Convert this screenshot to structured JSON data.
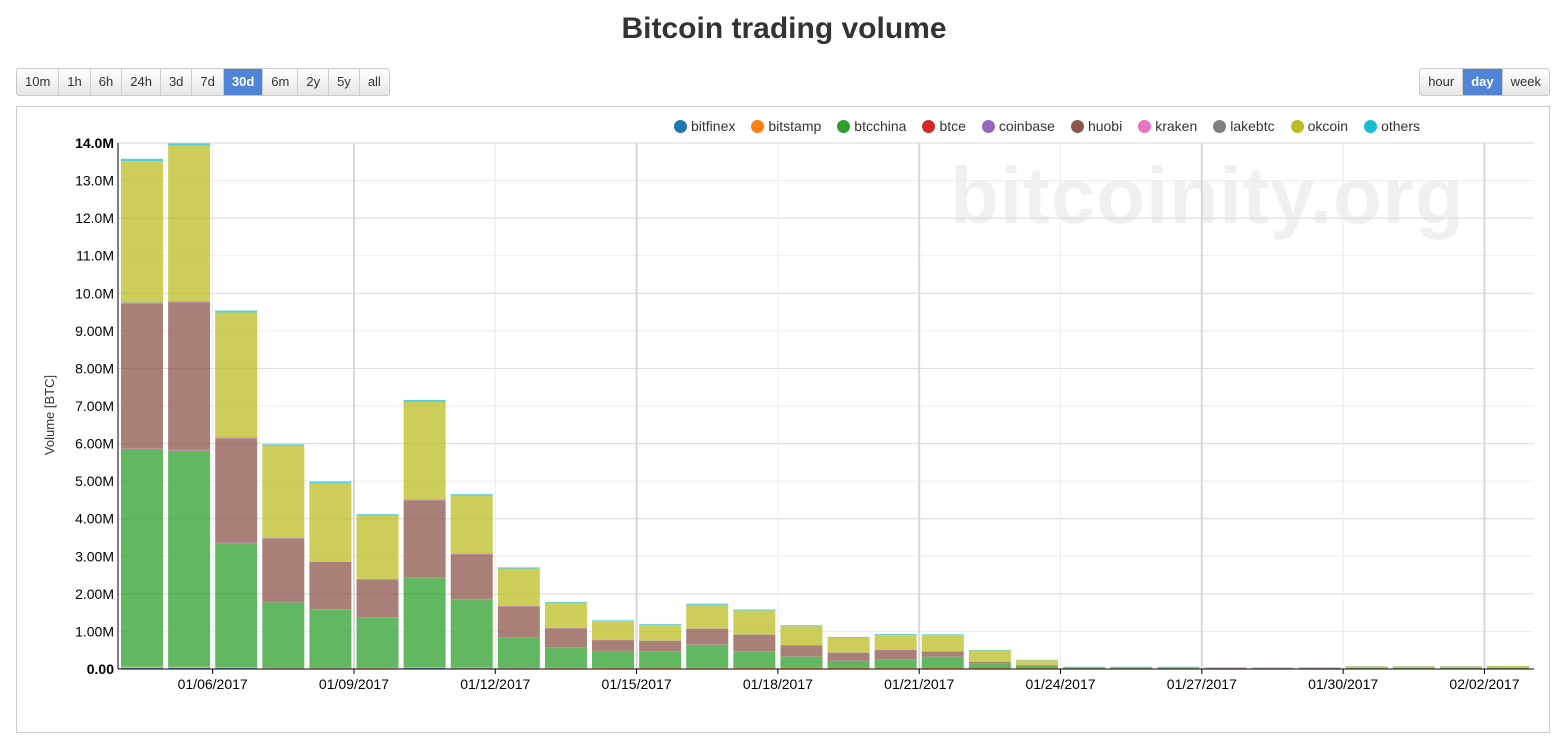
{
  "title": "Bitcoin trading volume",
  "range_buttons": [
    {
      "label": "10m",
      "active": false
    },
    {
      "label": "1h",
      "active": false
    },
    {
      "label": "6h",
      "active": false
    },
    {
      "label": "24h",
      "active": false
    },
    {
      "label": "3d",
      "active": false
    },
    {
      "label": "7d",
      "active": false
    },
    {
      "label": "30d",
      "active": true
    },
    {
      "label": "6m",
      "active": false
    },
    {
      "label": "2y",
      "active": false
    },
    {
      "label": "5y",
      "active": false
    },
    {
      "label": "all",
      "active": false
    }
  ],
  "interval_buttons": [
    {
      "label": "hour",
      "active": false
    },
    {
      "label": "day",
      "active": true
    },
    {
      "label": "week",
      "active": false
    }
  ],
  "watermark": "bitcoinity.org",
  "colors": {
    "accent": "#4f84d6",
    "bitfinex": "#1f77b4",
    "bitstamp": "#ff7f0e",
    "btcchina": "#2ca02c",
    "btce": "#d62728",
    "coinbase": "#9467bd",
    "huobi": "#8c564b",
    "kraken": "#e377c2",
    "lakebtc": "#7f7f7f",
    "okcoin": "#bcbd22",
    "others": "#17becf"
  },
  "chart_data": {
    "type": "bar",
    "stacked": true,
    "ylabel": "Volume [BTC]",
    "ylim": [
      0,
      14000000
    ],
    "y_ticks": [
      0,
      1000000,
      2000000,
      3000000,
      4000000,
      5000000,
      6000000,
      7000000,
      8000000,
      9000000,
      10000000,
      11000000,
      12000000,
      13000000,
      14000000
    ],
    "y_tick_labels": [
      "0.00",
      "1.00M",
      "2.00M",
      "3.00M",
      "4.00M",
      "5.00M",
      "6.00M",
      "7.00M",
      "8.00M",
      "9.00M",
      "10.0M",
      "11.0M",
      "12.0M",
      "13.0M",
      "14.0M"
    ],
    "x_tick_labels": [
      "01/06/2017",
      "01/09/2017",
      "01/12/2017",
      "01/15/2017",
      "01/18/2017",
      "01/21/2017",
      "01/24/2017",
      "01/27/2017",
      "01/30/2017",
      "02/02/2017"
    ],
    "x_tick_dates": [
      "2017-01-06",
      "2017-01-09",
      "2017-01-12",
      "2017-01-15",
      "2017-01-18",
      "2017-01-21",
      "2017-01-24",
      "2017-01-27",
      "2017-01-30",
      "2017-02-02"
    ],
    "categories": [
      "2017-01-04",
      "2017-01-05",
      "2017-01-06",
      "2017-01-07",
      "2017-01-08",
      "2017-01-09",
      "2017-01-10",
      "2017-01-11",
      "2017-01-12",
      "2017-01-13",
      "2017-01-14",
      "2017-01-15",
      "2017-01-16",
      "2017-01-17",
      "2017-01-18",
      "2017-01-19",
      "2017-01-20",
      "2017-01-21",
      "2017-01-22",
      "2017-01-23",
      "2017-01-24",
      "2017-01-25",
      "2017-01-26",
      "2017-01-27",
      "2017-01-28",
      "2017-01-29",
      "2017-01-30",
      "2017-01-31",
      "2017-02-01",
      "2017-02-02"
    ],
    "legend_position": "top-right",
    "series": [
      {
        "name": "bitfinex",
        "values": [
          30000,
          30000,
          25000,
          20000,
          20000,
          18000,
          25000,
          22000,
          20000,
          18000,
          16000,
          15000,
          18000,
          15000,
          15000,
          14000,
          14000,
          14000,
          12000,
          12000,
          8000,
          8000,
          8000,
          6000,
          5000,
          6000,
          8000,
          8000,
          8000,
          9000
        ]
      },
      {
        "name": "bitstamp",
        "values": [
          30000,
          30000,
          25000,
          20000,
          20000,
          18000,
          25000,
          22000,
          20000,
          18000,
          16000,
          15000,
          18000,
          15000,
          15000,
          14000,
          14000,
          14000,
          12000,
          12000,
          8000,
          8000,
          8000,
          6000,
          5000,
          6000,
          8000,
          8000,
          8000,
          9000
        ]
      },
      {
        "name": "btcchina",
        "values": [
          5800000,
          5750000,
          3300000,
          1730000,
          1540000,
          1330000,
          2370000,
          1800000,
          800000,
          540000,
          450000,
          430000,
          610000,
          440000,
          300000,
          190000,
          230000,
          300000,
          130000,
          60000,
          8000,
          8000,
          8000,
          5000,
          5000,
          5000,
          8000,
          8000,
          8000,
          10000
        ]
      },
      {
        "name": "btce",
        "values": [
          10000,
          10000,
          8000,
          6000,
          6000,
          5000,
          8000,
          6000,
          5000,
          4000,
          4000,
          4000,
          5000,
          4000,
          4000,
          3000,
          3000,
          3000,
          2000,
          2000,
          2000,
          2000,
          2000,
          1000,
          1000,
          1000,
          2000,
          2000,
          2000,
          2000
        ]
      },
      {
        "name": "coinbase",
        "values": [
          10000,
          10000,
          8000,
          6000,
          6000,
          5000,
          8000,
          6000,
          5000,
          4000,
          4000,
          4000,
          5000,
          4000,
          4000,
          3000,
          3000,
          3000,
          2000,
          2000,
          2000,
          2000,
          2000,
          1000,
          1000,
          1000,
          2000,
          2000,
          2000,
          2000
        ]
      },
      {
        "name": "huobi",
        "values": [
          3850000,
          3930000,
          2770000,
          1690000,
          1260000,
          1010000,
          2050000,
          1200000,
          820000,
          500000,
          280000,
          280000,
          410000,
          430000,
          290000,
          210000,
          240000,
          130000,
          30000,
          20000,
          9000,
          9000,
          9000,
          7000,
          6000,
          7000,
          10000,
          10000,
          10000,
          12000
        ]
      },
      {
        "name": "kraken",
        "values": [
          10000,
          10000,
          8000,
          6000,
          6000,
          5000,
          8000,
          6000,
          5000,
          4000,
          4000,
          4000,
          5000,
          4000,
          4000,
          3000,
          3000,
          3000,
          2000,
          2000,
          2000,
          2000,
          2000,
          1000,
          1000,
          1000,
          2000,
          2000,
          2000,
          2000
        ]
      },
      {
        "name": "lakebtc",
        "values": [
          20000,
          20000,
          16000,
          10000,
          10000,
          8000,
          16000,
          10000,
          8000,
          6000,
          6000,
          6000,
          8000,
          6000,
          6000,
          5000,
          5000,
          5000,
          3000,
          3000,
          2000,
          2000,
          2000,
          2000,
          2000,
          2000,
          2000,
          2000,
          2000,
          2000
        ]
      },
      {
        "name": "okcoin",
        "values": [
          3760000,
          4140000,
          3330000,
          2450000,
          2080000,
          1680000,
          2600000,
          1540000,
          990000,
          670000,
          490000,
          410000,
          630000,
          640000,
          500000,
          390000,
          400000,
          430000,
          300000,
          120000,
          15000,
          15000,
          15000,
          12000,
          10000,
          12000,
          25000,
          25000,
          25000,
          30000
        ]
      },
      {
        "name": "others",
        "values": [
          60000,
          60000,
          50000,
          40000,
          40000,
          40000,
          50000,
          40000,
          30000,
          25000,
          25000,
          25000,
          30000,
          25000,
          25000,
          20000,
          20000,
          20000,
          15000,
          10000,
          6000,
          6000,
          6000,
          5000,
          5000,
          5000,
          6000,
          6000,
          6000,
          6000
        ]
      }
    ]
  }
}
